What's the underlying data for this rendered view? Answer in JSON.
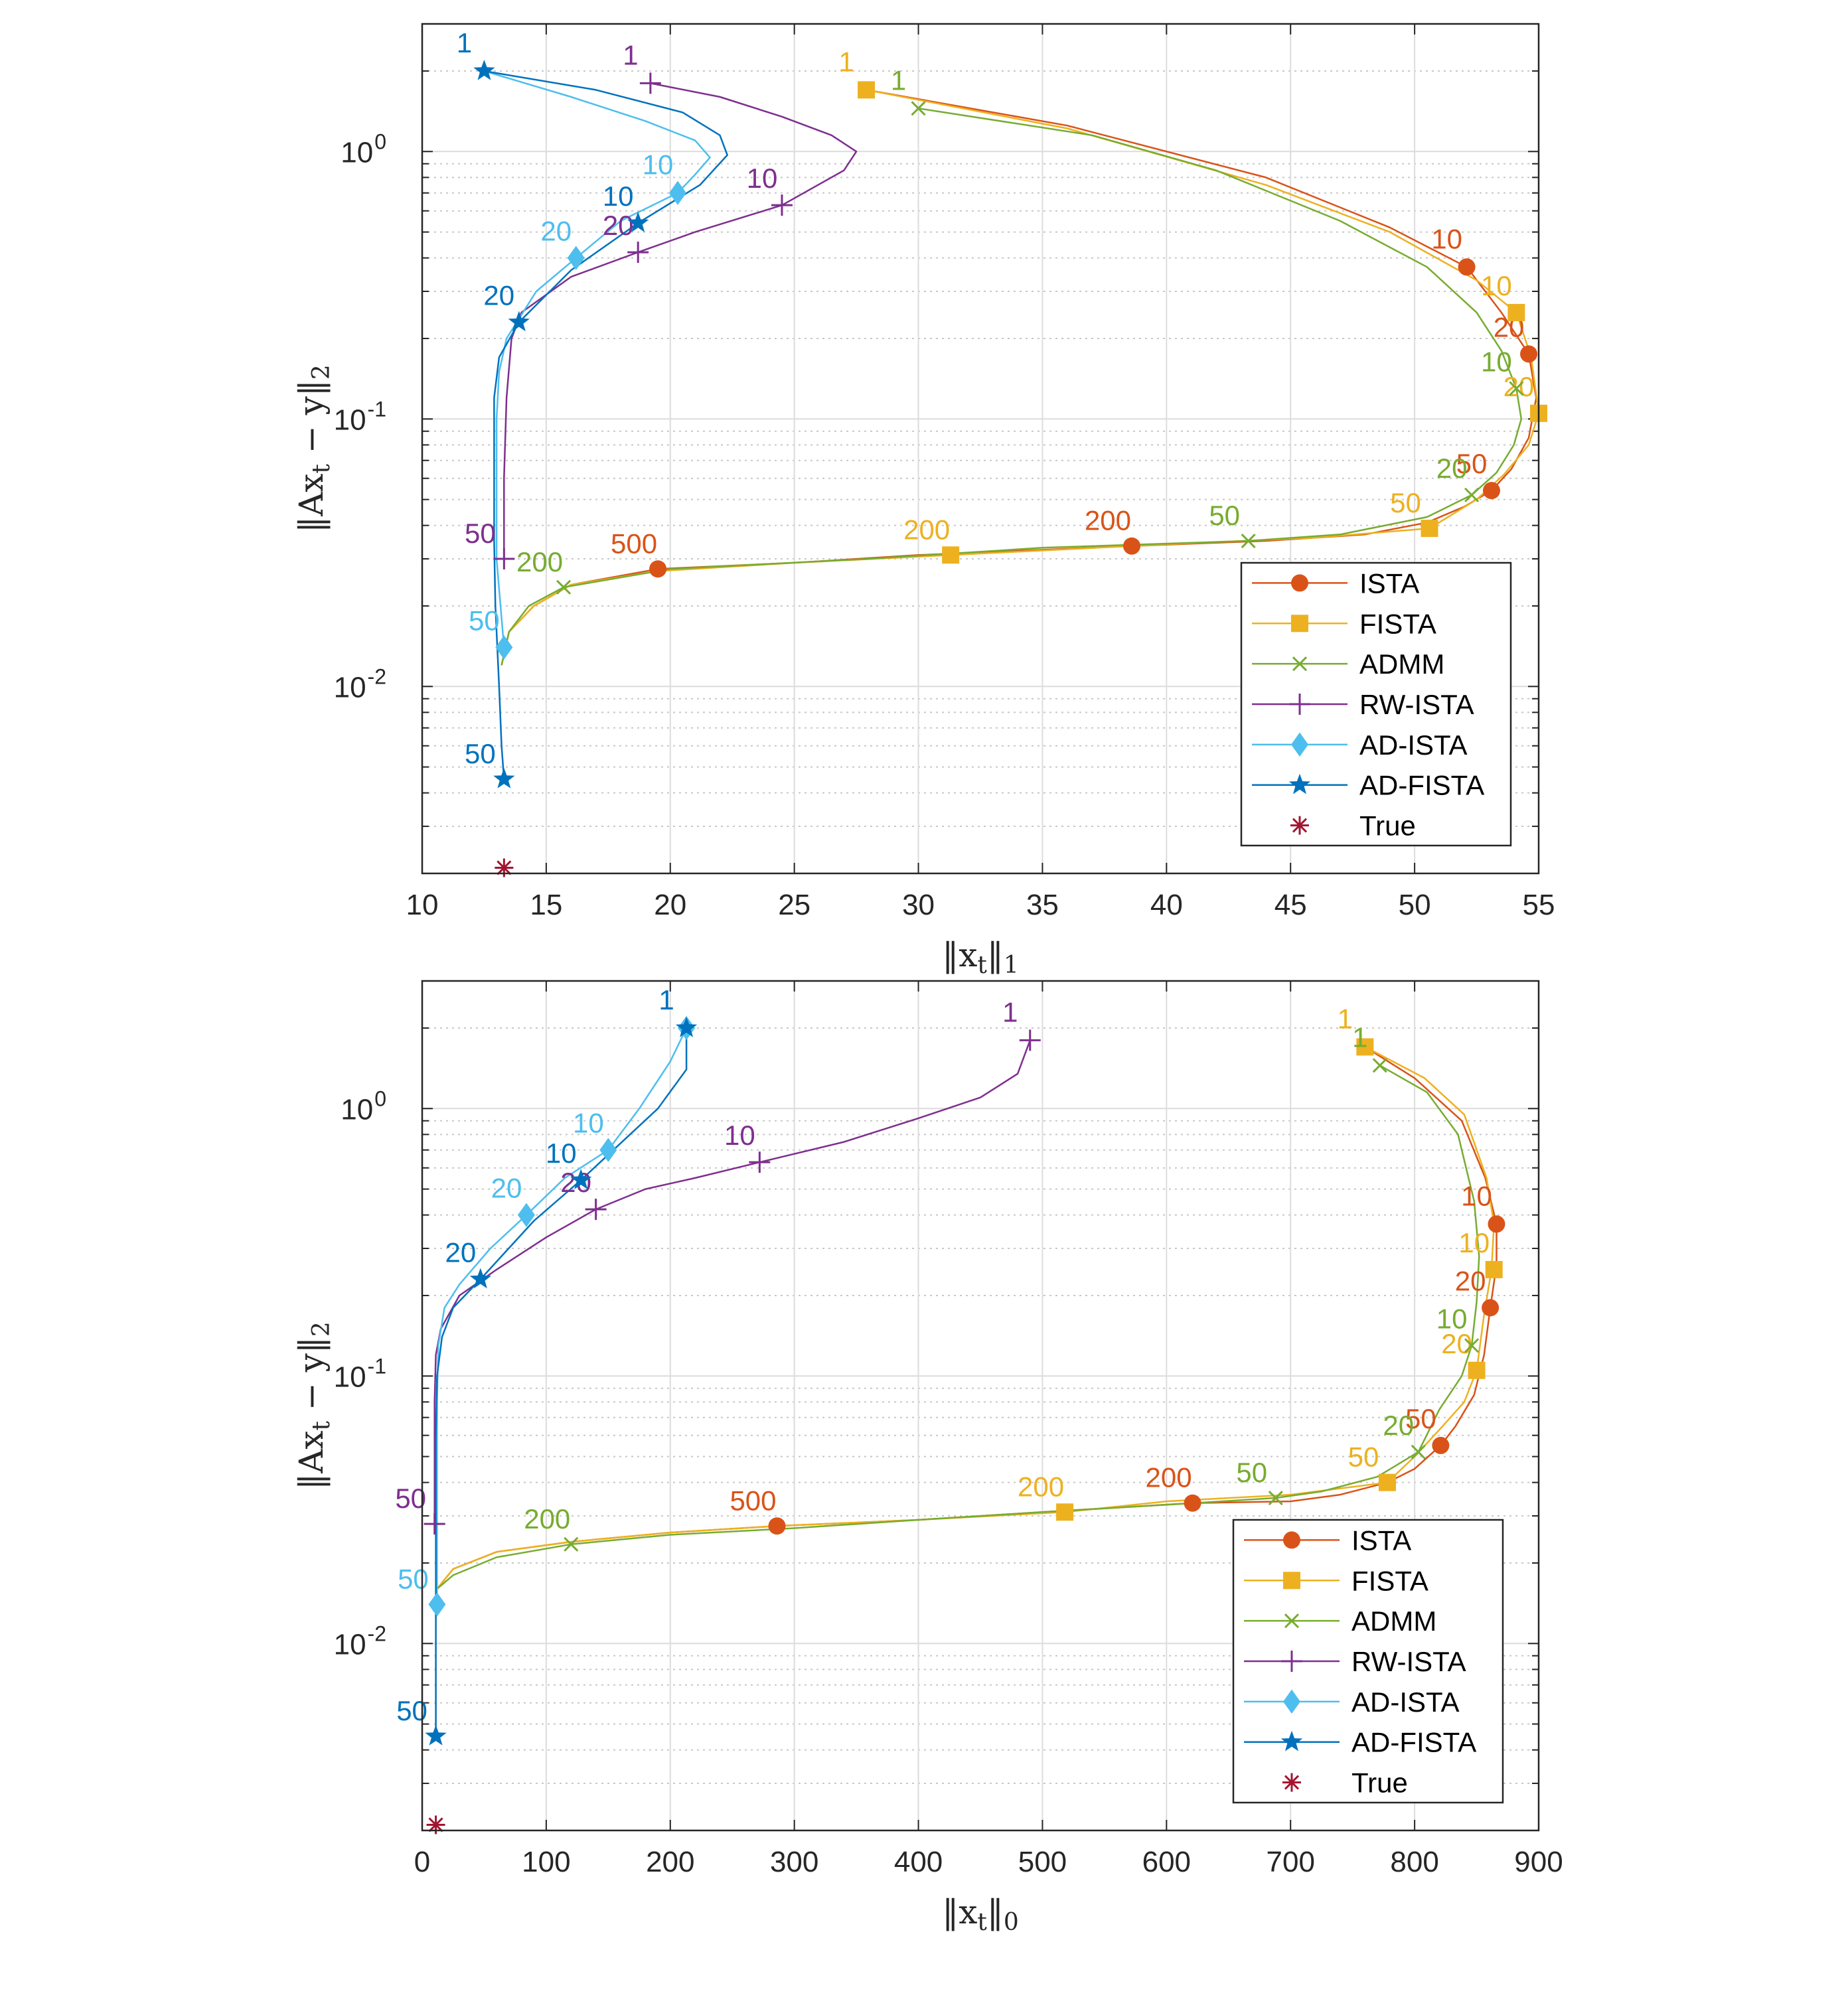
{
  "chart_data": [
    {
      "type": "line",
      "id": "top",
      "xscale": "linear",
      "yscale": "log",
      "xlim": [
        10,
        55
      ],
      "ylim": [
        0.002,
        3
      ],
      "xticks": [
        "10",
        "15",
        "20",
        "25",
        "30",
        "35",
        "40",
        "45",
        "50",
        "55"
      ],
      "xtick_values": [
        10,
        15,
        20,
        25,
        30,
        35,
        40,
        45,
        50,
        55
      ],
      "yticks": [
        {
          "base": "10",
          "exp": "-2",
          "value": 0.01
        },
        {
          "base": "10",
          "exp": "-1",
          "value": 0.1
        },
        {
          "base": "10",
          "exp": "0",
          "value": 1
        }
      ],
      "xlabel": {
        "pre": "‖x",
        "sub": "t",
        "post": "‖",
        "sub2": "1"
      },
      "ylabel": {
        "a": "‖Ax",
        "sub": "t",
        "b": " − y‖",
        "sub2": "2"
      },
      "legend_position": "bottom-right",
      "series": [
        {
          "name": "ISTA",
          "color": "#D95319",
          "marker": "circle",
          "x": [
            27.9,
            36,
            44,
            49,
            52.1,
            53.5,
            54.6,
            54.9,
            54.6,
            53.9,
            53.1,
            52.0,
            50.5,
            48,
            44,
            38.6,
            30,
            25,
            19.5,
            16,
            14.5,
            13.5,
            13.2
          ],
          "y": [
            1.7,
            1.25,
            0.8,
            0.52,
            0.37,
            0.25,
            0.175,
            0.12,
            0.085,
            0.065,
            0.054,
            0.047,
            0.041,
            0.037,
            0.035,
            0.0335,
            0.031,
            0.029,
            0.0275,
            0.024,
            0.02,
            0.016,
            0.012
          ],
          "markers": [
            {
              "label": "10",
              "x": 52.1,
              "y": 0.37
            },
            {
              "label": "20",
              "x": 54.6,
              "y": 0.175
            },
            {
              "label": "50",
              "x": 53.1,
              "y": 0.054
            },
            {
              "label": "200",
              "x": 38.6,
              "y": 0.0335
            },
            {
              "label": "500",
              "x": 19.5,
              "y": 0.0275
            }
          ]
        },
        {
          "name": "FISTA",
          "color": "#EDB120",
          "marker": "square",
          "x": [
            27.9,
            36,
            44,
            49,
            52.5,
            54.1,
            54.7,
            55.0,
            54.6,
            53.6,
            52.5,
            50.6,
            46,
            40,
            31.3,
            25,
            19.5,
            16,
            14.5,
            13.5,
            13.2
          ],
          "y": [
            1.7,
            1.22,
            0.75,
            0.5,
            0.33,
            0.25,
            0.17,
            0.105,
            0.08,
            0.062,
            0.05,
            0.039,
            0.036,
            0.034,
            0.031,
            0.029,
            0.027,
            0.024,
            0.02,
            0.016,
            0.012
          ],
          "markers": [
            {
              "label": "1",
              "x": 27.9,
              "y": 1.7
            },
            {
              "label": "10",
              "x": 54.1,
              "y": 0.25
            },
            {
              "label": "20",
              "x": 55.0,
              "y": 0.105
            },
            {
              "label": "50",
              "x": 50.6,
              "y": 0.039
            },
            {
              "label": "200",
              "x": 31.3,
              "y": 0.031
            }
          ]
        },
        {
          "name": "ADMM",
          "color": "#77AC30",
          "marker": "x",
          "x": [
            30.0,
            37,
            42,
            47,
            50.5,
            52.5,
            53.5,
            54.1,
            54.3,
            54.0,
            53.3,
            52.3,
            50.5,
            47,
            43.3,
            35,
            28,
            20,
            15.7,
            14.3,
            13.5,
            13.2
          ],
          "y": [
            1.45,
            1.15,
            0.85,
            0.55,
            0.37,
            0.25,
            0.18,
            0.13,
            0.1,
            0.08,
            0.063,
            0.052,
            0.043,
            0.037,
            0.035,
            0.033,
            0.03,
            0.0275,
            0.0235,
            0.02,
            0.016,
            0.012
          ],
          "markers": [
            {
              "label": "1",
              "x": 30.0,
              "y": 1.45
            },
            {
              "label": "10",
              "x": 54.1,
              "y": 0.13
            },
            {
              "label": "20",
              "x": 52.3,
              "y": 0.052
            },
            {
              "label": "50",
              "x": 43.3,
              "y": 0.035
            },
            {
              "label": "200",
              "x": 15.7,
              "y": 0.0235
            }
          ]
        },
        {
          "name": "RW-ISTA",
          "color": "#7E2F8E",
          "marker": "plus",
          "x": [
            19.2,
            22,
            24.5,
            26.5,
            27.5,
            27.0,
            24.5,
            21,
            18.7,
            16,
            14,
            13.6,
            13.4,
            13.3,
            13.3
          ],
          "y": [
            1.8,
            1.6,
            1.35,
            1.15,
            1.0,
            0.85,
            0.63,
            0.5,
            0.42,
            0.34,
            0.25,
            0.2,
            0.12,
            0.06,
            0.03
          ],
          "markers": [
            {
              "label": "1",
              "x": 19.2,
              "y": 1.8
            },
            {
              "label": "10",
              "x": 24.5,
              "y": 0.63
            },
            {
              "label": "20",
              "x": 18.7,
              "y": 0.42
            },
            {
              "label": "50",
              "x": 13.3,
              "y": 0.03
            }
          ]
        },
        {
          "name": "AD-ISTA",
          "color": "#4DBEEE",
          "marker": "diamond",
          "x": [
            12.5,
            16,
            19,
            21,
            21.6,
            21.0,
            20.3,
            18,
            16.2,
            14.6,
            13.4,
            13.1,
            13.0,
            13.0,
            13.0,
            13.2,
            13.3
          ],
          "y": [
            2.0,
            1.6,
            1.3,
            1.1,
            0.95,
            0.82,
            0.7,
            0.55,
            0.4,
            0.3,
            0.2,
            0.15,
            0.1,
            0.06,
            0.03,
            0.018,
            0.014
          ],
          "markers": [
            {
              "label": "10",
              "x": 20.3,
              "y": 0.7
            },
            {
              "label": "20",
              "x": 16.2,
              "y": 0.4
            },
            {
              "label": "50",
              "x": 13.3,
              "y": 0.014
            }
          ]
        },
        {
          "name": "AD-FISTA",
          "color": "#0072BD",
          "marker": "star",
          "x": [
            12.5,
            17,
            20.5,
            22.0,
            22.3,
            21.2,
            18.7,
            16,
            13.9,
            13.1,
            12.9,
            12.9,
            12.9,
            12.95,
            13.1,
            13.2,
            13.3
          ],
          "y": [
            2.0,
            1.7,
            1.4,
            1.15,
            0.97,
            0.75,
            0.54,
            0.36,
            0.23,
            0.17,
            0.12,
            0.07,
            0.035,
            0.02,
            0.01,
            0.006,
            0.0045
          ],
          "markers": [
            {
              "label": "1",
              "x": 12.5,
              "y": 2.0
            },
            {
              "label": "10",
              "x": 18.7,
              "y": 0.54
            },
            {
              "label": "20",
              "x": 13.9,
              "y": 0.23
            },
            {
              "label": "50",
              "x": 13.3,
              "y": 0.0045
            }
          ]
        },
        {
          "name": "True",
          "color": "#A2142F",
          "marker": "asterisk",
          "line": false,
          "x": [
            13.3
          ],
          "y": [
            0.0021
          ],
          "markers": [
            {
              "label": "",
              "x": 13.3,
              "y": 0.0021
            }
          ]
        }
      ]
    },
    {
      "type": "line",
      "id": "bottom",
      "xscale": "linear",
      "yscale": "log",
      "xlim": [
        0,
        900
      ],
      "ylim": [
        0.002,
        3
      ],
      "xticks": [
        "0",
        "100",
        "200",
        "300",
        "400",
        "500",
        "600",
        "700",
        "800",
        "900"
      ],
      "xtick_values": [
        0,
        100,
        200,
        300,
        400,
        500,
        600,
        700,
        800,
        900
      ],
      "yticks": [
        {
          "base": "10",
          "exp": "-2",
          "value": 0.01
        },
        {
          "base": "10",
          "exp": "-1",
          "value": 0.1
        },
        {
          "base": "10",
          "exp": "0",
          "value": 1
        }
      ],
      "xlabel": {
        "pre": "‖x",
        "sub": "t",
        "post": "‖",
        "sub2": "0"
      },
      "ylabel": {
        "a": "‖Ax",
        "sub": "t",
        "b": " − y‖",
        "sub2": "2"
      },
      "legend_position": "bottom-right",
      "series": [
        {
          "name": "ISTA",
          "color": "#D95319",
          "marker": "circle",
          "x": [
            760,
            800,
            838,
            857,
            866,
            866,
            861,
            856,
            848,
            833,
            821,
            800,
            778,
            740,
            700,
            621,
            500,
            400,
            286,
            200,
            120,
            60,
            25,
            12
          ],
          "y": [
            1.7,
            1.3,
            0.9,
            0.55,
            0.37,
            0.26,
            0.18,
            0.12,
            0.085,
            0.065,
            0.055,
            0.045,
            0.04,
            0.036,
            0.034,
            0.0335,
            0.031,
            0.029,
            0.0275,
            0.026,
            0.024,
            0.022,
            0.019,
            0.016
          ],
          "markers": [
            {
              "label": "10",
              "x": 866,
              "y": 0.37
            },
            {
              "label": "20",
              "x": 861,
              "y": 0.18
            },
            {
              "label": "50",
              "x": 821,
              "y": 0.055
            },
            {
              "label": "200",
              "x": 621,
              "y": 0.0335
            },
            {
              "label": "500",
              "x": 286,
              "y": 0.0275
            }
          ]
        },
        {
          "name": "FISTA",
          "color": "#EDB120",
          "marker": "square",
          "x": [
            760,
            808,
            840,
            858,
            864,
            862,
            856,
            850,
            840,
            820,
            800,
            778,
            700,
            600,
            518,
            400,
            286,
            200,
            120,
            60,
            25,
            12
          ],
          "y": [
            1.7,
            1.3,
            0.95,
            0.55,
            0.37,
            0.25,
            0.17,
            0.105,
            0.08,
            0.063,
            0.05,
            0.04,
            0.036,
            0.034,
            0.031,
            0.029,
            0.0275,
            0.026,
            0.024,
            0.022,
            0.019,
            0.016
          ],
          "markers": [
            {
              "label": "1",
              "x": 760,
              "y": 1.7
            },
            {
              "label": "10",
              "x": 864,
              "y": 0.25
            },
            {
              "label": "20",
              "x": 850,
              "y": 0.105
            },
            {
              "label": "50",
              "x": 778,
              "y": 0.04
            },
            {
              "label": "200",
              "x": 518,
              "y": 0.031
            }
          ]
        },
        {
          "name": "ADMM",
          "color": "#77AC30",
          "marker": "x",
          "x": [
            772,
            810,
            835,
            848,
            852,
            850,
            846,
            838,
            820,
            803,
            770,
            725,
            688,
            600,
            500,
            400,
            300,
            200,
            120,
            60,
            25,
            12
          ],
          "y": [
            1.45,
            1.15,
            0.8,
            0.45,
            0.28,
            0.19,
            0.13,
            0.1,
            0.075,
            0.052,
            0.042,
            0.037,
            0.035,
            0.033,
            0.031,
            0.029,
            0.027,
            0.0255,
            0.0235,
            0.021,
            0.018,
            0.016
          ],
          "markers": [
            {
              "label": "1",
              "x": 772,
              "y": 1.45
            },
            {
              "label": "10",
              "x": 846,
              "y": 0.13
            },
            {
              "label": "20",
              "x": 803,
              "y": 0.052
            },
            {
              "label": "50",
              "x": 688,
              "y": 0.035
            },
            {
              "label": "200",
              "x": 120,
              "y": 0.0235
            }
          ]
        },
        {
          "name": "RW-ISTA",
          "color": "#7E2F8E",
          "marker": "plus",
          "x": [
            490,
            480,
            450,
            400,
            340,
            272,
            220,
            180,
            140,
            100,
            60,
            30,
            15,
            11,
            10,
            10,
            10
          ],
          "y": [
            1.8,
            1.35,
            1.1,
            0.92,
            0.75,
            0.63,
            0.55,
            0.5,
            0.42,
            0.33,
            0.25,
            0.2,
            0.15,
            0.12,
            0.08,
            0.05,
            0.028
          ],
          "markers": [
            {
              "label": "1",
              "x": 490,
              "y": 1.8
            },
            {
              "label": "10",
              "x": 272,
              "y": 0.63
            },
            {
              "label": "20",
              "x": 140,
              "y": 0.42
            },
            {
              "label": "50",
              "x": 10,
              "y": 0.028
            }
          ]
        },
        {
          "name": "AD-ISTA",
          "color": "#4DBEEE",
          "marker": "diamond",
          "x": [
            213,
            200,
            175,
            150,
            115,
            84,
            55,
            30,
            18,
            13,
            12,
            12,
            12,
            12,
            12
          ],
          "y": [
            2.0,
            1.5,
            1.0,
            0.7,
            0.55,
            0.4,
            0.3,
            0.22,
            0.18,
            0.13,
            0.08,
            0.04,
            0.025,
            0.018,
            0.014
          ],
          "markers": [
            {
              "label": "1",
              "x": 213,
              "y": 2.0
            },
            {
              "label": "10",
              "x": 150,
              "y": 0.7
            },
            {
              "label": "20",
              "x": 84,
              "y": 0.4
            },
            {
              "label": "50",
              "x": 12,
              "y": 0.014
            }
          ]
        },
        {
          "name": "AD-FISTA",
          "color": "#0072BD",
          "marker": "star",
          "x": [
            213,
            213,
            190,
            128,
            90,
            47,
            25,
            16,
            12,
            11,
            11,
            11,
            11,
            11
          ],
          "y": [
            2.0,
            1.4,
            1.0,
            0.54,
            0.38,
            0.23,
            0.18,
            0.14,
            0.1,
            0.06,
            0.03,
            0.015,
            0.008,
            0.0045
          ],
          "markers": [
            {
              "label": "1",
              "x": 213,
              "y": 2.0
            },
            {
              "label": "10",
              "x": 128,
              "y": 0.54
            },
            {
              "label": "20",
              "x": 47,
              "y": 0.23
            },
            {
              "label": "50",
              "x": 11,
              "y": 0.0045
            }
          ]
        },
        {
          "name": "True",
          "color": "#A2142F",
          "marker": "asterisk",
          "line": false,
          "x": [
            11
          ],
          "y": [
            0.0021
          ],
          "markers": [
            {
              "label": "",
              "x": 11,
              "y": 0.0021
            }
          ]
        }
      ]
    }
  ]
}
